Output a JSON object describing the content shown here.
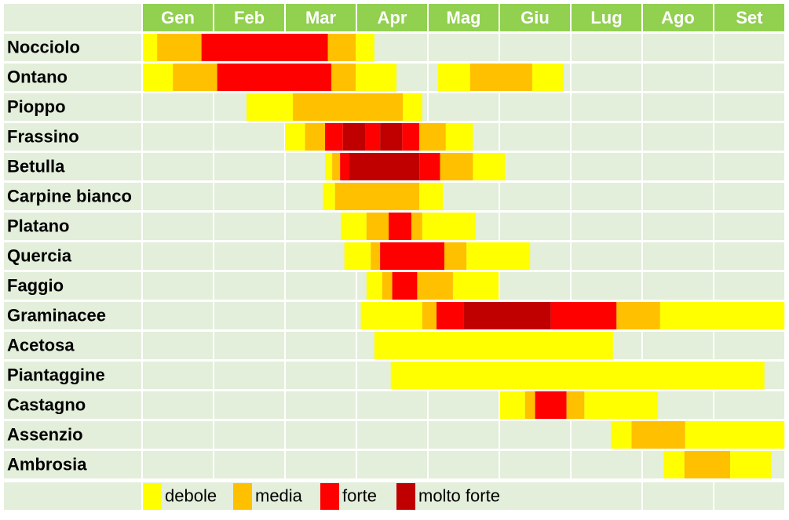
{
  "chart_data": {
    "type": "timeline",
    "categories": [
      "Gen",
      "Feb",
      "Mar",
      "Apr",
      "Mag",
      "Giu",
      "Lug",
      "Ago",
      "Set"
    ],
    "xlim": [
      0,
      9
    ],
    "levels": [
      {
        "name": "debole",
        "color": "#ffff00"
      },
      {
        "name": "media",
        "color": "#ffc000"
      },
      {
        "name": "forte",
        "color": "#ff0000"
      },
      {
        "name": "molto forte",
        "color": "#c00000"
      }
    ],
    "rows": [
      {
        "name": "Nocciolo",
        "edges": [
          0,
          0.2,
          0.82,
          2.59,
          2.98,
          3.24
        ],
        "levels": [
          0,
          1,
          2,
          1,
          0
        ]
      },
      {
        "name": "Ontano",
        "edges": [
          0,
          0.42,
          1.04,
          2.64,
          2.98,
          3.55,
          4.13,
          4.58,
          5.45,
          5.89
        ],
        "levels": [
          0,
          1,
          2,
          1,
          0,
          null,
          0,
          1,
          0
        ]
      },
      {
        "name": "Pioppo",
        "edges": [
          1.45,
          2.1,
          3.64,
          3.91
        ],
        "levels": [
          0,
          1,
          0
        ]
      },
      {
        "name": "Frassino",
        "edges": [
          1.99,
          2.27,
          2.55,
          2.8,
          3.11,
          3.32,
          3.63,
          3.87,
          4.24,
          4.62
        ],
        "levels": [
          0,
          1,
          2,
          3,
          2,
          3,
          2,
          1,
          0
        ]
      },
      {
        "name": "Betulla",
        "edges": [
          2.55,
          2.65,
          2.76,
          2.89,
          3.87,
          4.16,
          4.62,
          5.07
        ],
        "levels": [
          0,
          1,
          2,
          3,
          2,
          1,
          0
        ]
      },
      {
        "name": "Carpine bianco",
        "edges": [
          2.52,
          2.69,
          3.87,
          4.2
        ],
        "levels": [
          0,
          1,
          0
        ]
      },
      {
        "name": "Platano",
        "edges": [
          2.77,
          3.13,
          3.44,
          3.76,
          3.91,
          4.66
        ],
        "levels": [
          0,
          1,
          2,
          1,
          0
        ]
      },
      {
        "name": "Quercia",
        "edges": [
          2.82,
          3.19,
          3.32,
          4.22,
          4.53,
          5.42
        ],
        "levels": [
          0,
          1,
          2,
          1,
          0
        ]
      },
      {
        "name": "Faggio",
        "edges": [
          3.13,
          3.35,
          3.49,
          3.84,
          4.34,
          4.98
        ],
        "levels": [
          0,
          1,
          2,
          1,
          0
        ]
      },
      {
        "name": "Graminacee",
        "edges": [
          3.05,
          3.91,
          4.11,
          4.49,
          5.71,
          6.63,
          7.24,
          8.98
        ],
        "levels": [
          0,
          1,
          2,
          3,
          2,
          1,
          0
        ]
      },
      {
        "name": "Acetosa",
        "edges": [
          3.24,
          6.58
        ],
        "levels": [
          0
        ]
      },
      {
        "name": "Piantaggine",
        "edges": [
          3.47,
          8.7
        ],
        "levels": [
          0
        ]
      },
      {
        "name": "Castagno",
        "edges": [
          5,
          5.35,
          5.49,
          5.93,
          6.18,
          7.21
        ],
        "levels": [
          0,
          1,
          2,
          1,
          0
        ]
      },
      {
        "name": "Assenzio",
        "edges": [
          6.55,
          6.84,
          7.59,
          8.98
        ],
        "levels": [
          0,
          1,
          0
        ]
      },
      {
        "name": "Ambrosia",
        "edges": [
          7.29,
          7.58,
          8.22,
          8.8
        ],
        "levels": [
          0,
          1,
          0
        ]
      }
    ]
  }
}
